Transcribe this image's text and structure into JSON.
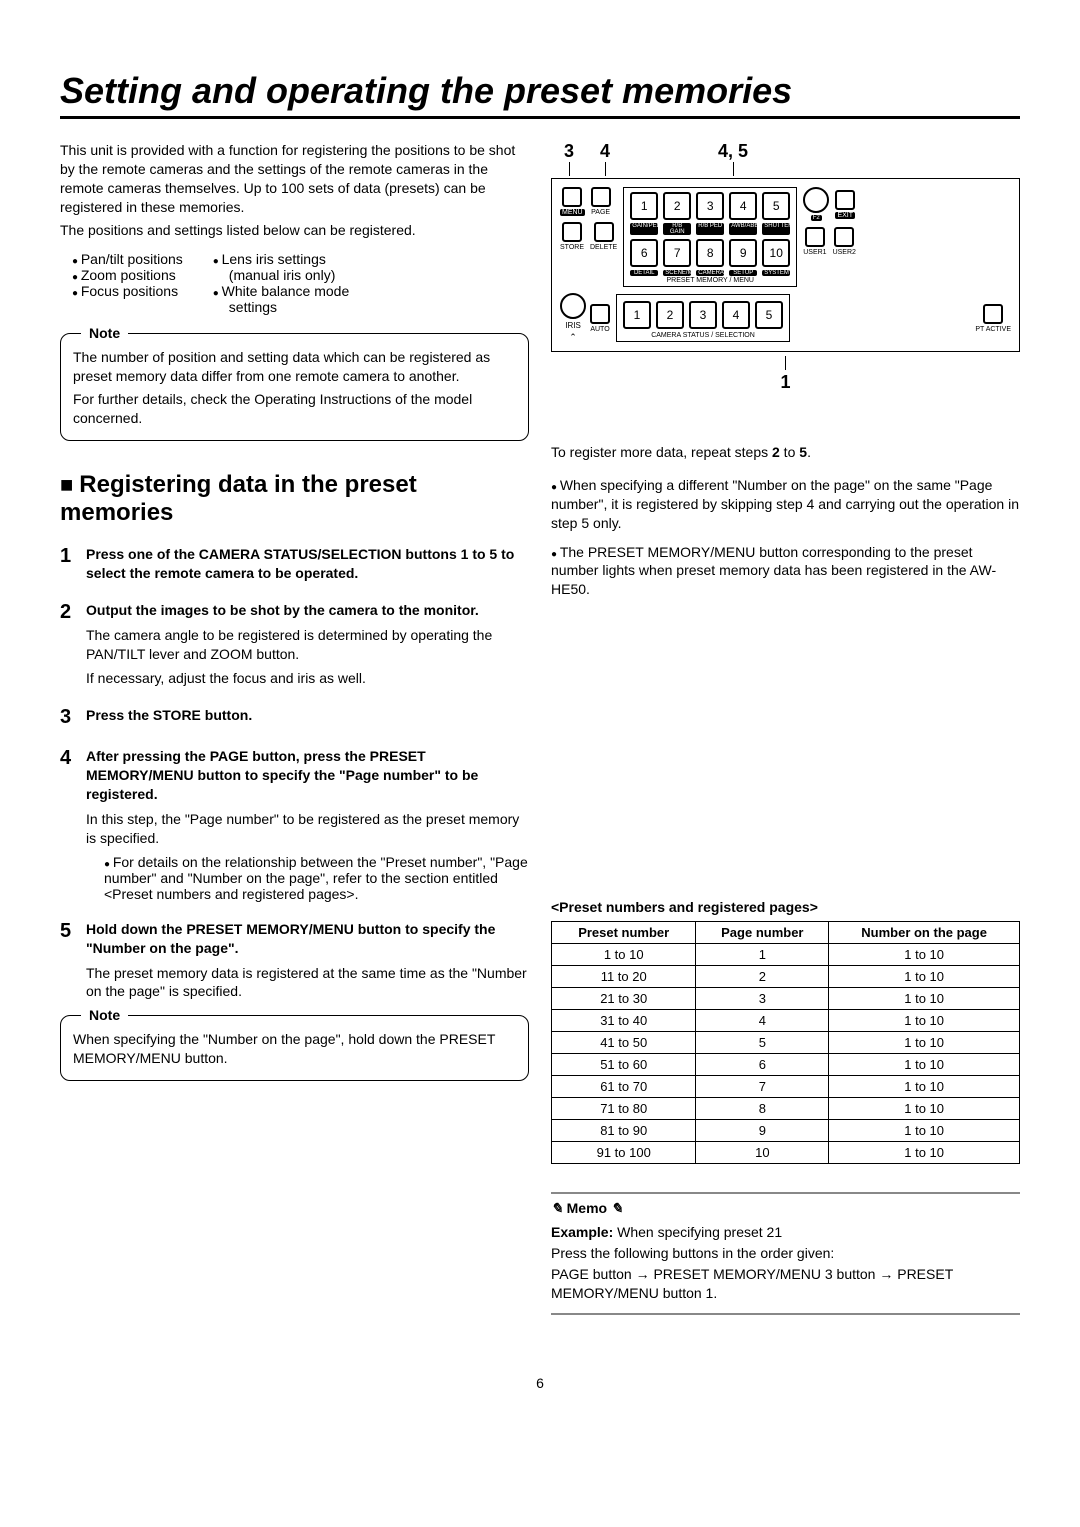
{
  "page_number": "6",
  "title": "Setting and operating the preset memories",
  "intro": {
    "p1": "This unit is provided with a function for registering the positions to be shot by the remote cameras and the settings of the remote cameras in the remote cameras themselves. Up to 100 sets of data (presets) can be registered in these memories.",
    "p2": "The positions and settings listed below can be registered."
  },
  "bullets_left": [
    "Pan/tilt positions",
    "Zoom positions",
    "Focus positions"
  ],
  "bullets_right": [
    "Lens iris settings",
    "(manual iris only)",
    "White balance mode",
    "settings"
  ],
  "note1": {
    "label": "Note",
    "p1": "The number of position and setting data which can be registered as preset memory data differ from one remote camera to another.",
    "p2": "For further details, check the Operating Instructions of the model concerned."
  },
  "section_title": "Registering data in the preset memories",
  "steps": [
    {
      "num": "1",
      "head": "Press one of the CAMERA STATUS/SELECTION buttons 1 to 5 to select the remote camera to be operated."
    },
    {
      "num": "2",
      "head": "Output the images to be shot by the camera to the monitor.",
      "body": [
        "The camera angle to be registered is determined by operating the PAN/TILT lever and ZOOM button.",
        "If necessary, adjust the focus and iris as well."
      ]
    },
    {
      "num": "3",
      "head": "Press the STORE button."
    },
    {
      "num": "4",
      "head": "After pressing the PAGE button, press the PRESET MEMORY/MENU button to specify the \"Page number\" to be registered.",
      "body": [
        "In this step, the \"Page number\" to be registered as the preset memory is specified."
      ],
      "sub": [
        "For details on the relationship between the \"Preset number\", \"Page number\" and \"Number on the page\", refer to the section entitled <Preset numbers and registered pages>."
      ]
    },
    {
      "num": "5",
      "head": "Hold down the PRESET MEMORY/MENU button to specify the \"Number on the page\".",
      "body": [
        "The preset memory data is registered at the same time as the \"Number on the page\" is specified."
      ]
    }
  ],
  "note2": {
    "label": "Note",
    "p1": "When specifying the \"Number on the page\", hold down the PRESET MEMORY/MENU button."
  },
  "annot": {
    "a": "3",
    "b": "4",
    "c": "4, 5",
    "d": "1"
  },
  "panel": {
    "row1_left": [
      "MENU",
      "PAGE"
    ],
    "row1_num": [
      "1",
      "2",
      "3",
      "4",
      "5"
    ],
    "row1_sublbl": [
      "GAIN/PED",
      "R/B GAIN",
      "R/B PED",
      "AWB/ABB",
      "SHUTTER"
    ],
    "row1_right_knob": "F2",
    "row1_right_btn": "EXIT",
    "row2_left": [
      "STORE",
      "DELETE"
    ],
    "row2_num": [
      "6",
      "7",
      "8",
      "9",
      "10"
    ],
    "row2_sublbl": [
      "DETAIL",
      "SCENE/MODE",
      "CAMERA",
      "SETUP",
      "SYSTEM"
    ],
    "row2_right": [
      "USER1",
      "USER2"
    ],
    "preset_caption": "PRESET MEMORY / MENU",
    "row3_left_knob": "IRIS",
    "row3_left_btn": "AUTO",
    "row3_num": [
      "1",
      "2",
      "3",
      "4",
      "5"
    ],
    "row3_caption": "CAMERA STATUS / SELECTION",
    "row3_right": "PT ACTIVE"
  },
  "right_text": {
    "p1": "To register more data, repeat steps 2 to 5.",
    "li1": "When specifying a different \"Number on the page\" on the same \"Page number\", it is registered by skipping step 4 and carrying out the operation in step 5 only.",
    "li2": "The PRESET MEMORY/MENU button corresponding to the preset number lights when preset memory data has been registered in the AW-HE50."
  },
  "table_caption": "<Preset numbers and registered pages>",
  "table": {
    "columns": [
      "Preset number",
      "Page number",
      "Number on the page"
    ],
    "rows": [
      [
        "1 to 10",
        "1",
        "1 to 10"
      ],
      [
        "11 to 20",
        "2",
        "1 to 10"
      ],
      [
        "21 to 30",
        "3",
        "1 to 10"
      ],
      [
        "31 to 40",
        "4",
        "1 to 10"
      ],
      [
        "41 to 50",
        "5",
        "1 to 10"
      ],
      [
        "51 to 60",
        "6",
        "1 to 10"
      ],
      [
        "61 to 70",
        "7",
        "1 to 10"
      ],
      [
        "71 to 80",
        "8",
        "1 to 10"
      ],
      [
        "81 to 90",
        "9",
        "1 to 10"
      ],
      [
        "91 to 100",
        "10",
        "1 to 10"
      ]
    ]
  },
  "memo": {
    "title": "Memo",
    "ex_label": "Example:",
    "ex_text": " When specifying preset 21",
    "p2": "Press the following buttons in the order given:",
    "p3": "PAGE button → PRESET MEMORY/MENU 3 button → PRESET MEMORY/MENU button 1."
  }
}
